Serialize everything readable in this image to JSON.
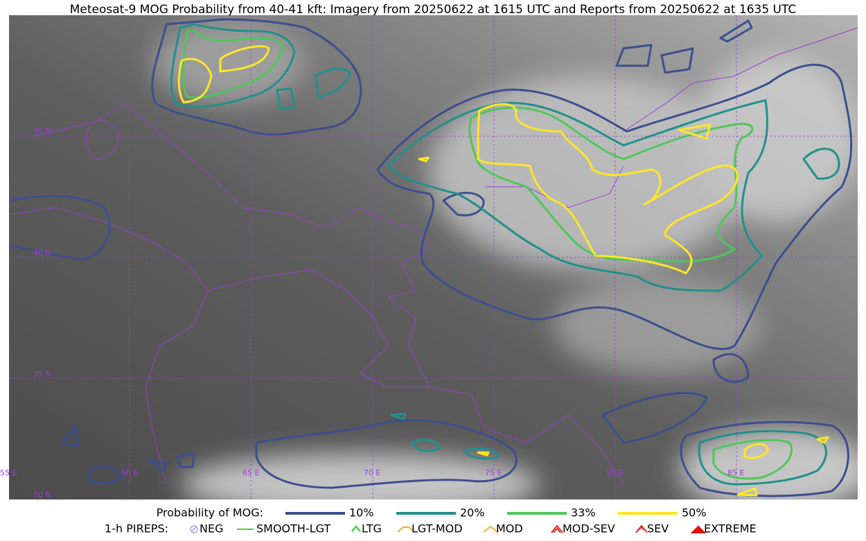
{
  "title": "Meteosat-9 MOG Probability from 40-41 kft: Imagery from 20250622 at 1615 UTC and Reports from 20250622 at 1635 UTC",
  "map": {
    "lat_labels": [
      "45 N",
      "40 N",
      "35 N",
      "30 N"
    ],
    "lon_labels": [
      "55 E",
      "60 E",
      "65 E",
      "70 E",
      "75 E",
      "80 E",
      "85 E"
    ]
  },
  "legend": {
    "probability": {
      "label": "Probability of MOG:",
      "items": [
        {
          "label": "10%",
          "color": "#3b4f8e"
        },
        {
          "label": "20%",
          "color": "#21908c"
        },
        {
          "label": "33%",
          "color": "#4fc65c"
        },
        {
          "label": "50%",
          "color": "#fde725"
        }
      ]
    },
    "pireps": {
      "label": "1-h PIREPS:",
      "items": [
        {
          "label": "NEG",
          "color": "#b8b4f0"
        },
        {
          "label": "SMOOTH-LGT",
          "color": "#33dd33"
        },
        {
          "label": "LTG",
          "color": "#22cc22"
        },
        {
          "label": "LGT-MOD",
          "color": "#f0b020"
        },
        {
          "label": "MOD",
          "color": "#f0b020"
        },
        {
          "label": "MOD-SEV",
          "color": "#e03030"
        },
        {
          "label": "SEV",
          "color": "#e03030"
        },
        {
          "label": "EXTREME",
          "color": "#e01010"
        }
      ]
    }
  }
}
